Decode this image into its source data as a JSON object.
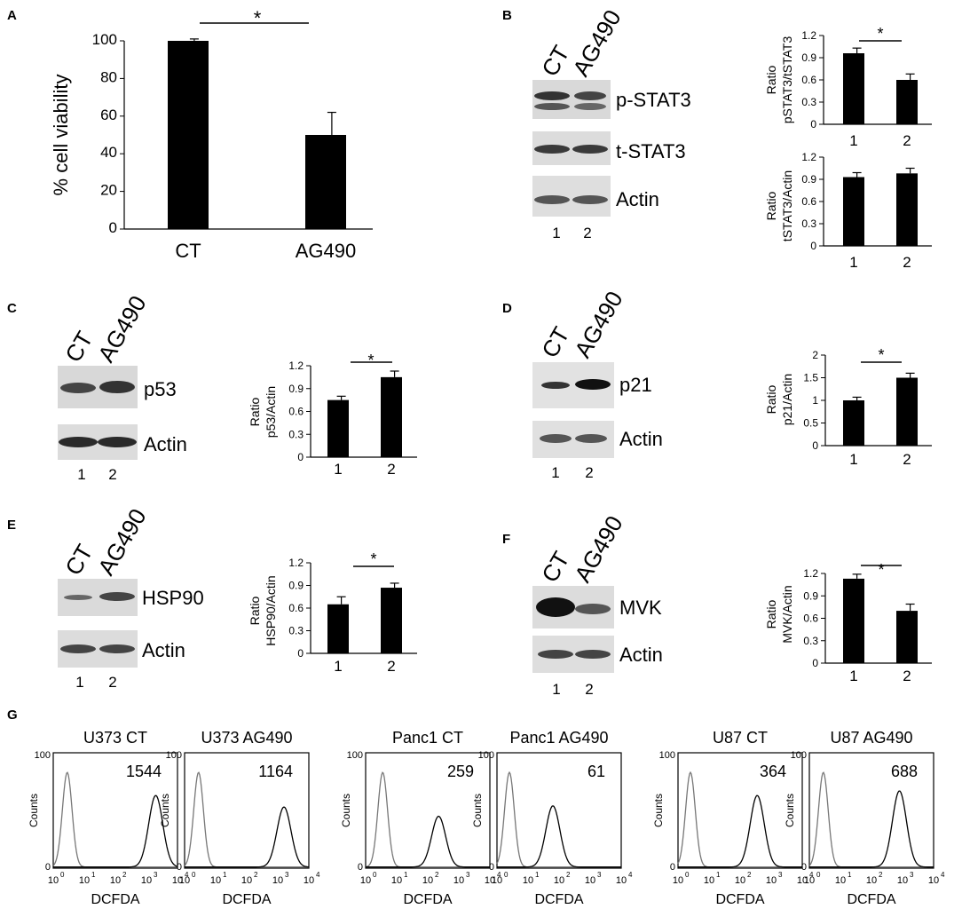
{
  "colors": {
    "bar": "#000000",
    "blot_bg": "#dcdcdc",
    "band": "#222222",
    "ctrl_hist": "#777777",
    "treat_hist": "#000000"
  },
  "panels": {
    "A": {
      "label": "A",
      "lanes": [
        "CT",
        "AG490"
      ],
      "chart": {
        "type": "bar",
        "categories": [
          "CT",
          "AG490"
        ],
        "values": [
          100,
          50
        ],
        "errors": [
          1,
          12
        ],
        "ylabel": "% cell viability",
        "ylim": [
          0,
          100
        ],
        "yticks": [
          "0",
          "20",
          "40",
          "60",
          "80",
          "100"
        ],
        "sig": "*"
      }
    },
    "B": {
      "label": "B",
      "lanes": [
        "CT",
        "AG490"
      ],
      "lane_numbers": [
        "1",
        "2"
      ],
      "blots": [
        "p-STAT3",
        "t-STAT3",
        "Actin"
      ],
      "charts": [
        {
          "type": "bar",
          "categories": [
            "1",
            "2"
          ],
          "values": [
            0.96,
            0.6
          ],
          "errors": [
            0.07,
            0.08
          ],
          "ylabel_line1": "Ratio",
          "ylabel_line2": "pSTAT3/tSTAT3",
          "ylim": [
            0,
            1.2
          ],
          "yticks": [
            "0",
            "0.3",
            "0.6",
            "0.9",
            "1.2"
          ],
          "sig": "*"
        },
        {
          "type": "bar",
          "categories": [
            "1",
            "2"
          ],
          "values": [
            0.93,
            0.98
          ],
          "errors": [
            0.06,
            0.07
          ],
          "ylabel_line1": "Ratio",
          "ylabel_line2": "tSTAT3/Actin",
          "ylim": [
            0,
            1.2
          ],
          "yticks": [
            "0",
            "0.3",
            "0.6",
            "0.9",
            "1.2"
          ],
          "sig": ""
        }
      ]
    },
    "C": {
      "label": "C",
      "lanes": [
        "CT",
        "AG490"
      ],
      "lane_numbers": [
        "1",
        "2"
      ],
      "blots": [
        "p53",
        "Actin"
      ],
      "chart": {
        "type": "bar",
        "categories": [
          "1",
          "2"
        ],
        "values": [
          0.75,
          1.05
        ],
        "errors": [
          0.05,
          0.08
        ],
        "ylabel_line1": "Ratio",
        "ylabel_line2": "p53/Actin",
        "ylim": [
          0,
          1.2
        ],
        "yticks": [
          "0",
          "0.3",
          "0.6",
          "0.9",
          "1.2"
        ],
        "sig": "*"
      }
    },
    "D": {
      "label": "D",
      "lanes": [
        "CT",
        "AG490"
      ],
      "lane_numbers": [
        "1",
        "2"
      ],
      "blots": [
        "p21",
        "Actin"
      ],
      "chart": {
        "type": "bar",
        "categories": [
          "1",
          "2"
        ],
        "values": [
          1.0,
          1.5
        ],
        "errors": [
          0.07,
          0.1
        ],
        "ylabel_line1": "Ratio",
        "ylabel_line2": "p21/Actin",
        "ylim": [
          0,
          2
        ],
        "yticks": [
          "0",
          "0.5",
          "1",
          "1.5",
          "2"
        ],
        "sig": "*"
      }
    },
    "E": {
      "label": "E",
      "lanes": [
        "CT",
        "AG490"
      ],
      "lane_numbers": [
        "1",
        "2"
      ],
      "blots": [
        "HSP90",
        "Actin"
      ],
      "chart": {
        "type": "bar",
        "categories": [
          "1",
          "2"
        ],
        "values": [
          0.65,
          0.87
        ],
        "errors": [
          0.1,
          0.06
        ],
        "ylabel_line1": "Ratio",
        "ylabel_line2": "HSP90/Actin",
        "ylim": [
          0,
          1.2
        ],
        "yticks": [
          "0",
          "0.3",
          "0.6",
          "0.9",
          "1.2"
        ],
        "sig": "*"
      }
    },
    "F": {
      "label": "F",
      "lanes": [
        "CT",
        "AG490"
      ],
      "lane_numbers": [
        "1",
        "2"
      ],
      "blots": [
        "MVK",
        "Actin"
      ],
      "chart": {
        "type": "bar",
        "categories": [
          "1",
          "2"
        ],
        "values": [
          1.13,
          0.7
        ],
        "errors": [
          0.06,
          0.09
        ],
        "ylabel_line1": "Ratio",
        "ylabel_line2": "MVK/Actin",
        "ylim": [
          0,
          1.2
        ],
        "yticks": [
          "0",
          "0.3",
          "0.6",
          "0.9",
          "1.2"
        ],
        "sig": "*"
      }
    },
    "G": {
      "label": "G",
      "ylabel": "Counts",
      "xlabel": "DCFDA",
      "yticks": [
        "0",
        "100"
      ],
      "xticks": [
        "10",
        "10",
        "10",
        "10",
        "10"
      ],
      "xtick_exponents": [
        "0",
        "1",
        "2",
        "3",
        "4"
      ],
      "histograms": [
        {
          "title": "U373 CT",
          "value": "1544",
          "ctrl_peak_log": 0.45,
          "treat_peak_log": 3.3,
          "treat_height": 0.62
        },
        {
          "title": "U373 AG490",
          "value": "1164",
          "ctrl_peak_log": 0.45,
          "treat_peak_log": 3.2,
          "treat_height": 0.52
        },
        {
          "title": "Panc1 CT",
          "value": "259",
          "ctrl_peak_log": 0.55,
          "treat_peak_log": 2.35,
          "treat_height": 0.44
        },
        {
          "title": "Panc1 AG490",
          "value": "61",
          "ctrl_peak_log": 0.4,
          "treat_peak_log": 1.8,
          "treat_height": 0.53
        },
        {
          "title": "U87 CT",
          "value": "364",
          "ctrl_peak_log": 0.4,
          "treat_peak_log": 2.55,
          "treat_height": 0.62
        },
        {
          "title": "U87 AG490",
          "value": "688",
          "ctrl_peak_log": 0.45,
          "treat_peak_log": 2.9,
          "treat_height": 0.66
        }
      ]
    }
  }
}
